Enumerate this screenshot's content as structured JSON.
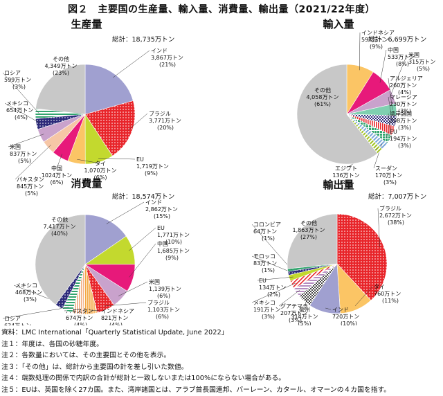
{
  "title": "図２　主要国の生産量、輸入量、消費量、輸出量（2021/22年度）",
  "chart_data": [
    {
      "type": "pie",
      "title": "生産量",
      "total": "総計：18,735万トン",
      "slices": [
        {
          "name": "インド",
          "value": 3867,
          "amount": "3,867万トン",
          "pct": "(21%)",
          "color": "#a0a0d0"
        },
        {
          "name": "ブラジル",
          "value": 3771,
          "amount": "3,771万トン",
          "pct": "(20%)",
          "color": "#e8252a",
          "pattern": "dots-red"
        },
        {
          "name": "EU",
          "value": 1719,
          "amount": "1,719万トン",
          "pct": "(9%)",
          "color": "#c3d92e"
        },
        {
          "name": "タイ",
          "value": 1070,
          "amount": "1,070万トン",
          "pct": "(6%)",
          "color": "#fbc565"
        },
        {
          "name": "中国",
          "value": 1024,
          "amount": "1024万トン",
          "pct": "(6%)",
          "color": "#e7197a"
        },
        {
          "name": "パキスタン",
          "value": 845,
          "amount": "845万トン",
          "pct": "(5%)",
          "color": "#f6c6a6"
        },
        {
          "name": "米国",
          "value": 837,
          "amount": "837万トン",
          "pct": "(5%)",
          "color": "#c9a2cc"
        },
        {
          "name": "メキシコ",
          "value": 654,
          "amount": "654万トン",
          "pct": "(4%)",
          "color": "#2c2a7a",
          "pattern": "dots-navy"
        },
        {
          "name": "ロシア",
          "value": 599,
          "amount": "599万トン",
          "pct": "(3%)",
          "color": "#33a56f",
          "pattern": "stripes-green"
        },
        {
          "name": "その他",
          "value": 4349,
          "amount": "4,349万トン",
          "pct": "(23%)",
          "color": "#c8c8c8"
        }
      ]
    },
    {
      "type": "pie",
      "title": "輸入量",
      "total": "総計：6,699万トン",
      "slices": [
        {
          "name": "インドネシア",
          "value": 597,
          "amount": "597万トン",
          "pct": "(9%)",
          "color": "#fbc565"
        },
        {
          "name": "中国",
          "value": 533,
          "amount": "533万トン",
          "pct": "(8%)",
          "color": "#e7197a"
        },
        {
          "name": "米国",
          "value": 315,
          "amount": "315万トン",
          "pct": "(5%)",
          "color": "#c9a2cc"
        },
        {
          "name": "アルジェリア",
          "value": 260,
          "amount": "260万トン",
          "pct": "(4%)",
          "color": "#7fd0b0"
        },
        {
          "name": "マレーシア",
          "value": 230,
          "amount": "230万トン",
          "pct": "(3%)",
          "color": "#2c2a7a",
          "pattern": "checker-navy"
        },
        {
          "name": "湾岸諸国",
          "value": 208,
          "amount": "208万トン",
          "pct": "(3%)",
          "color": "#e8252a",
          "pattern": "stripes-red"
        },
        {
          "name": "EU",
          "value": 194,
          "amount": "194万トン",
          "pct": "(3%)",
          "color": "#33a56f",
          "pattern": "grid-green"
        },
        {
          "name": "スーダン",
          "value": 170,
          "amount": "170万トン",
          "pct": "(3%)",
          "color": "#7aa7d9",
          "pattern": "diag-blue"
        },
        {
          "name": "エジプト",
          "value": 136,
          "amount": "136万トン",
          "pct": "(2%)",
          "color": "#c3d92e",
          "pattern": "diag-lime"
        },
        {
          "name": "その他",
          "value": 4058,
          "amount": "4,058万トン",
          "pct": "(61%)",
          "color": "#c8c8c8"
        }
      ]
    },
    {
      "type": "pie",
      "title": "消費量",
      "total": "総計：18,574万トン",
      "slices": [
        {
          "name": "インド",
          "value": 2862,
          "amount": "2,862万トン",
          "pct": "(15%)",
          "color": "#a0a0d0"
        },
        {
          "name": "EU",
          "value": 1771,
          "amount": "1,771万トン",
          "pct": "(10%)",
          "color": "#c3d92e"
        },
        {
          "name": "中国",
          "value": 1685,
          "amount": "1,685万トン",
          "pct": "(9%)",
          "color": "#e7197a"
        },
        {
          "name": "米国",
          "value": 1139,
          "amount": "1,139万トン",
          "pct": "(6%)",
          "color": "#c9a2cc"
        },
        {
          "name": "ブラジル",
          "value": 1103,
          "amount": "1,103万トン",
          "pct": "(6%)",
          "color": "#e8252a",
          "pattern": "dots-red"
        },
        {
          "name": "インドネシア",
          "value": 821,
          "amount": "821万トン",
          "pct": "(4%)",
          "color": "#fbc565",
          "pattern": "stripes-orange"
        },
        {
          "name": "パキスタン",
          "value": 674,
          "amount": "674万トン",
          "pct": "(4%)",
          "color": "#f6c6a6",
          "pattern": "stripes-peach"
        },
        {
          "name": "ロシア",
          "value": 634,
          "amount": "634万トン",
          "pct": "(3%)",
          "color": "#33a56f",
          "pattern": "stripes-green"
        },
        {
          "name": "メキシコ",
          "value": 468,
          "amount": "468万トン",
          "pct": "(3%)",
          "color": "#2c2a7a",
          "pattern": "dots-navy"
        },
        {
          "name": "その他",
          "value": 7417,
          "amount": "7,417万トン",
          "pct": "(40%)",
          "color": "#c8c8c8"
        }
      ]
    },
    {
      "type": "pie",
      "title": "輸出量",
      "total": "総計：7,007万トン",
      "slices": [
        {
          "name": "ブラジル",
          "value": 2672,
          "amount": "2,672万トン",
          "pct": "(38%)",
          "color": "#e8252a",
          "pattern": "dots-red"
        },
        {
          "name": "タイ",
          "value": 760,
          "amount": "760万トン",
          "pct": "(11%)",
          "color": "#fbc565"
        },
        {
          "name": "インド",
          "value": 720,
          "amount": "720万トン",
          "pct": "(10%)",
          "color": "#a0a0d0"
        },
        {
          "name": "豪州",
          "value": 314,
          "amount": "314万トン",
          "pct": "(5%)",
          "color": "#4a4a4a",
          "pattern": "checker-dark"
        },
        {
          "name": "グアテマラ",
          "value": 207,
          "amount": "207万トン",
          "pct": "(3%)",
          "color": "#c9a2cc",
          "pattern": "stripes-purple"
        },
        {
          "name": "メキシコ",
          "value": 191,
          "amount": "191万トン",
          "pct": "(3%)",
          "color": "#e8252a",
          "pattern": "diag-red"
        },
        {
          "name": "EU",
          "value": 134,
          "amount": "134万トン",
          "pct": "(2%)",
          "color": "#c3d92e"
        },
        {
          "name": "モロッコ",
          "value": 83,
          "amount": "83万トン",
          "pct": "(1%)",
          "color": "#2c2a7a",
          "pattern": "dots-navy"
        },
        {
          "name": "コロンビア",
          "value": 64,
          "amount": "64万トン",
          "pct": "(1%)",
          "color": "#33a56f"
        },
        {
          "name": "その他",
          "value": 1863,
          "amount": "1,863万トン",
          "pct": "(27%)",
          "color": "#c8c8c8"
        }
      ]
    }
  ],
  "notes": [
    "資料：LMC International「Quarterly Statistical Update, June 2022」",
    "注１：年度は、各国の砂糖年度。",
    "注２：各数量においては、その主要国とその他を表示。",
    "注３：「その他」は、総計から主要国の計を差し引いた数値。",
    "注４：端数処理の関係で内訳の合計が総計と一致しないまたは100%にならない場合がある。",
    "注５：EUは、英国を除く27カ国。また、湾岸諸国とは、アラブ首長国連邦、バーレーン、カタール、オマーンの４カ国を指す。"
  ]
}
